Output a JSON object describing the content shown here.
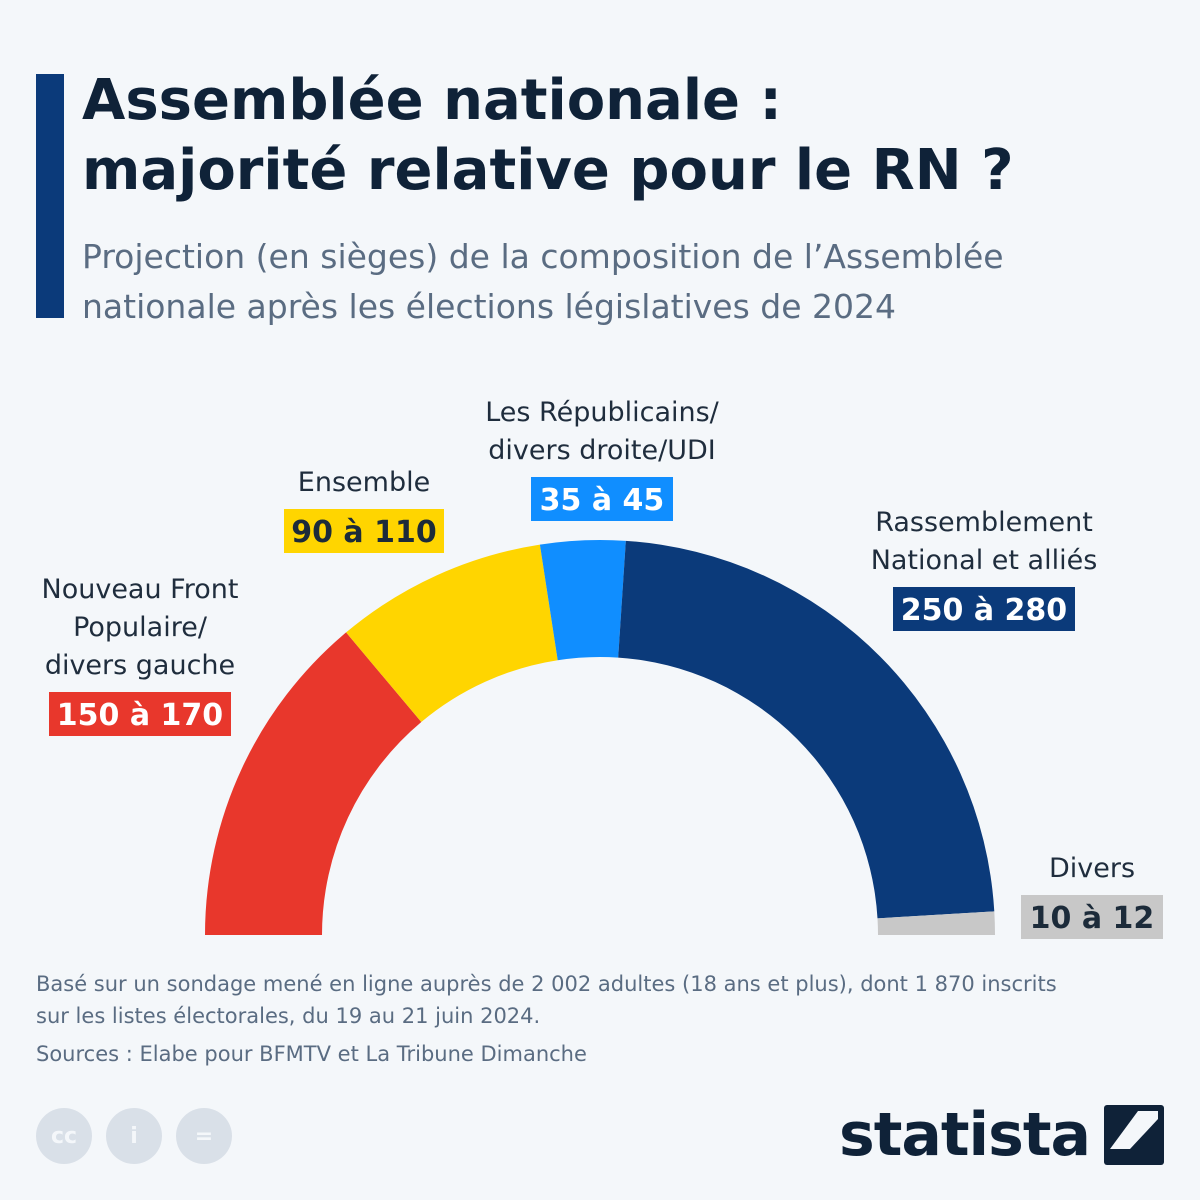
{
  "header": {
    "title_line1": "Assemblée nationale :",
    "title_line2": "majorité relative pour le RN ?",
    "subtitle_line1": "Projection (en sièges) de la composition de l’Assemblée",
    "subtitle_line2": "nationale après les élections législatives de 2024"
  },
  "chart_data": {
    "type": "pie",
    "shape": "semicircle-hemicycle",
    "unit": "sièges",
    "series": [
      {
        "name_lines": [
          "Nouveau Front",
          "Populaire/",
          "divers gauche"
        ],
        "range_label": "150 à 170",
        "min": 150,
        "max": 170,
        "color": "#e8372c",
        "label_text_color": "#ffffff"
      },
      {
        "name_lines": [
          "Ensemble"
        ],
        "range_label": "90 à 110",
        "min": 90,
        "max": 110,
        "color": "#ffd500",
        "label_text_color": "#1c2b3a"
      },
      {
        "name_lines": [
          "Les Républicains/",
          "divers droite/UDI"
        ],
        "range_label": "35 à 45",
        "min": 35,
        "max": 45,
        "color": "#108eff",
        "label_text_color": "#ffffff"
      },
      {
        "name_lines": [
          "Rassemblement",
          "National et alliés"
        ],
        "range_label": "250 à 280",
        "min": 250,
        "max": 280,
        "color": "#0b3a7a",
        "label_text_color": "#ffffff"
      },
      {
        "name_lines": [
          "Divers"
        ],
        "range_label": "10 à 12",
        "min": 10,
        "max": 12,
        "color": "#c8c8c8",
        "label_text_color": "#1c2b3a"
      }
    ]
  },
  "footer": {
    "note_line1": "Basé sur un sondage mené en ligne auprès de 2 002 adultes (18 ans et plus), dont 1 870 inscrits",
    "note_line2": "sur les listes électorales, du 19 au 21 juin 2024.",
    "source": "Sources : Elabe pour BFMTV et La Tribune Dimanche",
    "license_icons": [
      "cc-icon",
      "attribution-icon",
      "no-derivatives-icon"
    ],
    "license_glyphs": [
      "cc",
      "i",
      "="
    ],
    "brand": "statista"
  }
}
